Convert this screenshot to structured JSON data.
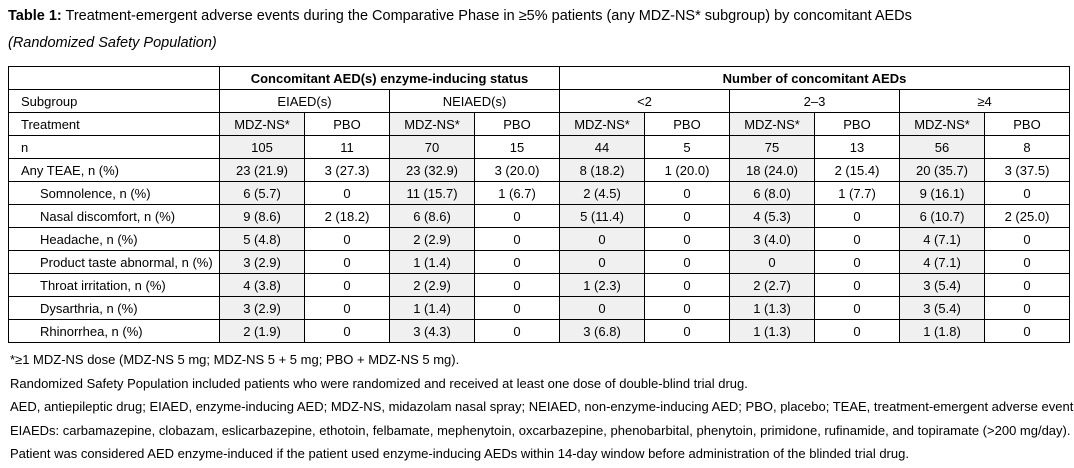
{
  "title": {
    "label": "Table 1:",
    "text": "Treatment-emergent adverse events during the Comparative Phase in ≥5% patients (any MDZ-NS* subgroup) by concomitant AEDs",
    "subtitle": "(Randomized Safety Population)"
  },
  "table": {
    "col_groups": [
      {
        "label": "Concomitant AED(s) enzyme-inducing status",
        "span": 4
      },
      {
        "label": "Number of concomitant AEDs",
        "span": 6
      }
    ],
    "subgroup_label": "Subgroup",
    "subgroups": [
      {
        "label": "EIAED(s)",
        "span": 2
      },
      {
        "label": "NEIAED(s)",
        "span": 2
      },
      {
        "label": "<2",
        "span": 2
      },
      {
        "label": "2–3",
        "span": 2
      },
      {
        "label": "≥4",
        "span": 2
      }
    ],
    "treatment_label": "Treatment",
    "treatments": [
      "MDZ-NS*",
      "PBO",
      "MDZ-NS*",
      "PBO",
      "MDZ-NS*",
      "PBO",
      "MDZ-NS*",
      "PBO",
      "MDZ-NS*",
      "PBO"
    ],
    "rows": [
      {
        "label": "n",
        "indent": false,
        "values": [
          "105",
          "11",
          "70",
          "15",
          "44",
          "5",
          "75",
          "13",
          "56",
          "8"
        ]
      },
      {
        "label": "Any TEAE, n (%)",
        "indent": false,
        "values": [
          "23 (21.9)",
          "3 (27.3)",
          "23 (32.9)",
          "3 (20.0)",
          "8 (18.2)",
          "1 (20.0)",
          "18 (24.0)",
          "2 (15.4)",
          "20 (35.7)",
          "3 (37.5)"
        ]
      },
      {
        "label": "Somnolence, n (%)",
        "indent": true,
        "values": [
          "6 (5.7)",
          "0",
          "11 (15.7)",
          "1 (6.7)",
          "2 (4.5)",
          "0",
          "6 (8.0)",
          "1 (7.7)",
          "9 (16.1)",
          "0"
        ]
      },
      {
        "label": "Nasal discomfort, n (%)",
        "indent": true,
        "values": [
          "9 (8.6)",
          "2 (18.2)",
          "6 (8.6)",
          "0",
          "5 (11.4)",
          "0",
          "4 (5.3)",
          "0",
          "6 (10.7)",
          "2 (25.0)"
        ]
      },
      {
        "label": "Headache, n (%)",
        "indent": true,
        "values": [
          "5 (4.8)",
          "0",
          "2 (2.9)",
          "0",
          "0",
          "0",
          "3 (4.0)",
          "0",
          "4 (7.1)",
          "0"
        ]
      },
      {
        "label": "Product taste abnormal, n (%)",
        "indent": true,
        "values": [
          "3 (2.9)",
          "0",
          "1 (1.4)",
          "0",
          "0",
          "0",
          "0",
          "0",
          "4 (7.1)",
          "0"
        ]
      },
      {
        "label": "Throat irritation, n (%)",
        "indent": true,
        "values": [
          "4 (3.8)",
          "0",
          "2 (2.9)",
          "0",
          "1 (2.3)",
          "0",
          "2 (2.7)",
          "0",
          "3 (5.4)",
          "0"
        ]
      },
      {
        "label": "Dysarthria, n (%)",
        "indent": true,
        "values": [
          "3 (2.9)",
          "0",
          "1 (1.4)",
          "0",
          "0",
          "0",
          "1 (1.3)",
          "0",
          "3 (5.4)",
          "0"
        ]
      },
      {
        "label": "Rhinorrhea, n (%)",
        "indent": true,
        "values": [
          "2 (1.9)",
          "0",
          "3 (4.3)",
          "0",
          "3 (6.8)",
          "0",
          "1 (1.3)",
          "0",
          "1 (1.8)",
          "0"
        ]
      }
    ]
  },
  "footnotes": [
    "*≥1 MDZ-NS dose (MDZ-NS 5 mg; MDZ-NS 5 + 5 mg; PBO + MDZ-NS 5 mg).",
    "Randomized Safety Population included patients who were randomized and received at least one dose of double-blind trial drug.",
    "AED, antiepileptic drug; EIAED, enzyme-inducing AED; MDZ-NS, midazolam nasal spray; NEIAED, non-enzyme-inducing AED; PBO, placebo; TEAE, treatment-emergent adverse event.",
    "EIAEDs: carbamazepine, clobazam, eslicarbazepine, ethotoin, felbamate, mephenytoin, oxcarbazepine, phenobarbital, phenytoin, primidone, rufinamide, and topiramate (>200 mg/day).",
    "Patient was considered AED enzyme-induced if the patient used enzyme-inducing AEDs within 14-day window before administration of the blinded trial drug."
  ],
  "colors": {
    "shaded_column": "#f0f0f0",
    "border": "#000000",
    "text": "#000000",
    "background": "#ffffff"
  }
}
